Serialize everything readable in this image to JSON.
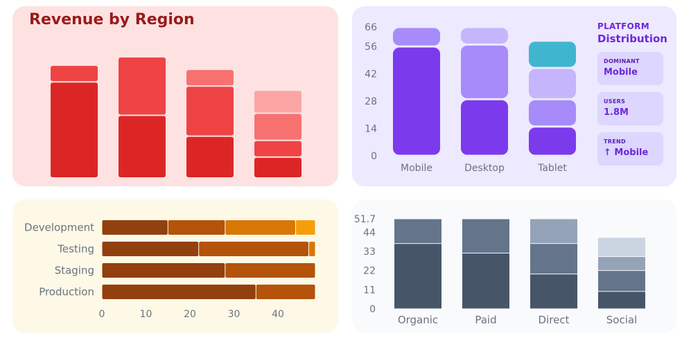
{
  "revenue": {
    "title": "Revenue by Region",
    "chart_data": {
      "type": "bar",
      "stacked": true,
      "categories": [
        "",
        "",
        "",
        ""
      ],
      "ylim": [
        0,
        60
      ],
      "series": [
        {
          "values": [
            46,
            30,
            20,
            10
          ],
          "color": "#dc2626"
        },
        {
          "values": [
            8,
            28,
            24,
            8
          ],
          "color": "#ef4444"
        },
        {
          "values": [
            0,
            0,
            8,
            13
          ],
          "color": "#f87171"
        },
        {
          "values": [
            0,
            0,
            0,
            11
          ],
          "color": "#fca5a5"
        }
      ],
      "axes_visible": false,
      "grid": false
    }
  },
  "platform": {
    "heading_small": "PLATFORM",
    "heading_big": "Distribution",
    "cards": [
      {
        "label": "DOMINANT",
        "value": "Mobile"
      },
      {
        "label": "USERS",
        "value": "1.8M"
      },
      {
        "label": "TREND",
        "value": "↑ Mobile"
      }
    ],
    "chart_data": {
      "type": "bar",
      "stacked": true,
      "categories": [
        "Mobile",
        "Desktop",
        "Tablet"
      ],
      "yticks": [
        0,
        14,
        28,
        42,
        56,
        66
      ],
      "ylim": [
        0,
        66
      ],
      "segments": [
        [
          {
            "value": 56,
            "color": "#7c3aed"
          },
          {
            "value": 10,
            "color": "#a78bfa"
          }
        ],
        [
          {
            "value": 29,
            "color": "#7c3aed"
          },
          {
            "value": 28,
            "color": "#a78bfa"
          },
          {
            "value": 9,
            "color": "#c4b5fd"
          }
        ],
        [
          {
            "value": 15,
            "color": "#7c3aed"
          },
          {
            "value": 14,
            "color": "#a78bfa"
          },
          {
            "value": 16,
            "color": "#c4b5fd"
          },
          {
            "value": 14,
            "color": "#3fb5d0"
          }
        ]
      ],
      "grid": false
    }
  },
  "environments": {
    "chart_data": {
      "type": "bar",
      "orientation": "horizontal",
      "stacked": true,
      "categories": [
        "Development",
        "Testing",
        "Staging",
        "Production"
      ],
      "xticks": [
        0,
        10,
        20,
        30,
        40
      ],
      "xlim": [
        0,
        48.5
      ],
      "segments": [
        [
          {
            "value": 15,
            "color": "#92400e"
          },
          {
            "value": 13,
            "color": "#b45309"
          },
          {
            "value": 16,
            "color": "#d97706"
          },
          {
            "value": 4.5,
            "color": "#f59e0b"
          }
        ],
        [
          {
            "value": 22,
            "color": "#92400e"
          },
          {
            "value": 25,
            "color": "#b45309"
          },
          {
            "value": 1.5,
            "color": "#d97706"
          }
        ],
        [
          {
            "value": 28,
            "color": "#92400e"
          },
          {
            "value": 20.5,
            "color": "#b45309"
          }
        ],
        [
          {
            "value": 35,
            "color": "#92400e"
          },
          {
            "value": 13.5,
            "color": "#b45309"
          }
        ]
      ],
      "grid": false
    }
  },
  "traffic": {
    "chart_data": {
      "type": "bar",
      "stacked": true,
      "categories": [
        "Organic",
        "Paid",
        "Direct",
        "Social"
      ],
      "yticks": [
        0,
        11,
        22,
        33,
        44,
        51.7
      ],
      "ylim": [
        0,
        51.7
      ],
      "segments": [
        [
          {
            "value": 37.5,
            "color": "#475569"
          },
          {
            "value": 14.2,
            "color": "#64748b"
          }
        ],
        [
          {
            "value": 32,
            "color": "#475569"
          },
          {
            "value": 19.7,
            "color": "#64748b"
          }
        ],
        [
          {
            "value": 20,
            "color": "#475569"
          },
          {
            "value": 17.5,
            "color": "#64748b"
          },
          {
            "value": 14.2,
            "color": "#94a3b8"
          }
        ],
        [
          {
            "value": 10,
            "color": "#475569"
          },
          {
            "value": 12,
            "color": "#64748b"
          },
          {
            "value": 8,
            "color": "#94a3b8"
          },
          {
            "value": 11,
            "color": "#cbd5e1"
          }
        ]
      ],
      "grid": false
    }
  }
}
